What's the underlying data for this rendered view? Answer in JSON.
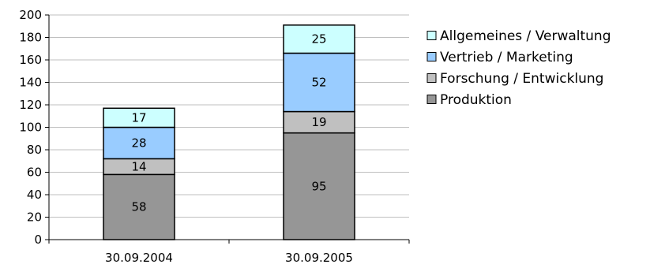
{
  "chart_data": {
    "type": "bar",
    "stacked": true,
    "categories": [
      "30.09.2004",
      "30.09.2005"
    ],
    "series": [
      {
        "name": "Produktion",
        "values": [
          58,
          95
        ],
        "color": "#969696"
      },
      {
        "name": "Forschung / Entwicklung",
        "values": [
          14,
          19
        ],
        "color": "#c0c0c0"
      },
      {
        "name": "Vertrieb / Marketing",
        "values": [
          28,
          52
        ],
        "color": "#99ccff"
      },
      {
        "name": "Allgemeines / Verwaltung",
        "values": [
          17,
          25
        ],
        "color": "#ccffff"
      }
    ],
    "yticks": [
      0,
      20,
      40,
      60,
      80,
      100,
      120,
      140,
      160,
      180,
      200
    ],
    "ylim": [
      0,
      200
    ],
    "grid": true,
    "legend_position": "right",
    "legend_order": [
      "Allgemeines / Verwaltung",
      "Vertrieb / Marketing",
      "Forschung / Entwicklung",
      "Produktion"
    ],
    "title": "",
    "xlabel": "",
    "ylabel": ""
  }
}
